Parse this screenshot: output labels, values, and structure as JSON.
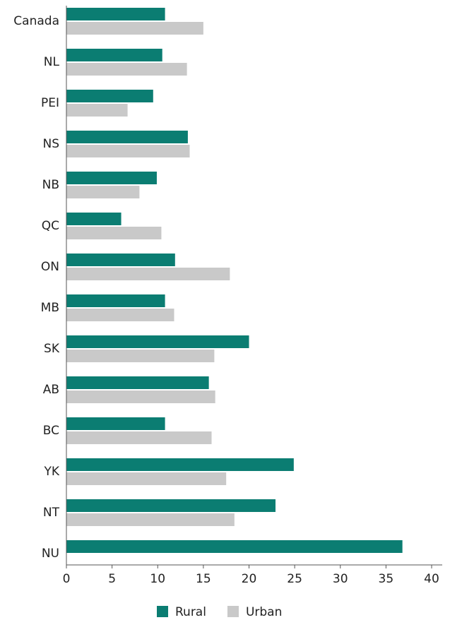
{
  "chart_data": {
    "type": "bar",
    "orientation": "horizontal",
    "categories": [
      "Canada",
      "NL",
      "PEI",
      "NS",
      "NB",
      "QC",
      "ON",
      "MB",
      "SK",
      "AB",
      "BC",
      "YK",
      "NT",
      "NU"
    ],
    "series": [
      {
        "name": "Rural",
        "color": "#0b7d72",
        "values": [
          10.8,
          10.5,
          9.5,
          13.3,
          9.9,
          6.0,
          11.9,
          10.8,
          20.0,
          15.6,
          10.8,
          24.9,
          22.9,
          36.8
        ]
      },
      {
        "name": "Urban",
        "color": "#c9c9c9",
        "values": [
          15.0,
          13.2,
          6.7,
          13.5,
          8.0,
          10.4,
          17.9,
          11.8,
          16.2,
          16.3,
          15.9,
          17.5,
          18.4,
          null
        ]
      }
    ],
    "xlim": [
      0,
      40
    ],
    "xticks": [
      0,
      5,
      10,
      15,
      20,
      25,
      30,
      35,
      40
    ],
    "grid": false,
    "legend": "bottom"
  }
}
